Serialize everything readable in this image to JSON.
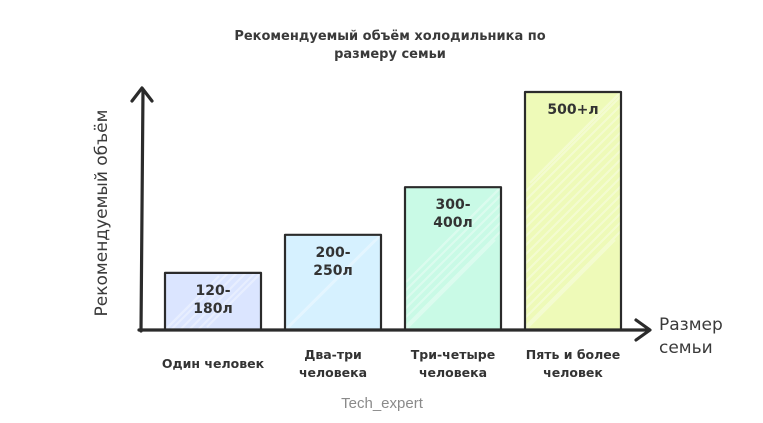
{
  "chart_data": {
    "type": "bar",
    "title": "Рекомендуемый объём холодильника по размеру семьи",
    "title_lines": [
      "Рекомендуемый объём холодильника по",
      "размеру семьи"
    ],
    "xlabel": "Размер семьи",
    "xlabel_lines": [
      "Размер",
      "семьи"
    ],
    "ylabel": "Рекомендуемый объём",
    "categories": [
      "Один человек",
      "Два-три человека",
      "Три-четыре человека",
      "Пять и более человек"
    ],
    "category_lines": [
      [
        "Один человек"
      ],
      [
        "Два-три",
        "человека"
      ],
      [
        "Три-четыре",
        "человека"
      ],
      [
        "Пять и более",
        "человек"
      ]
    ],
    "values": [
      120,
      200,
      300,
      500
    ],
    "value_labels": [
      [
        "120-",
        "180л"
      ],
      [
        "200-",
        "250л"
      ],
      [
        "300-",
        "400л"
      ],
      [
        "500+л"
      ]
    ],
    "colors": [
      "#dbe5ff",
      "#d6f1ff",
      "#c9fae6",
      "#eefab8"
    ],
    "ylim": [
      0,
      500
    ],
    "grid": false,
    "legend": "none"
  },
  "watermark": "Tech_expert"
}
